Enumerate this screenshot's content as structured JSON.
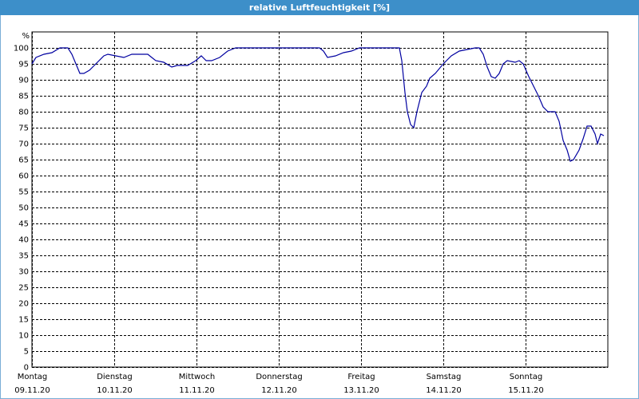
{
  "chart_data": {
    "type": "line",
    "title": "relative Luftfeuchtigkeit [%]",
    "y_label": "%",
    "color": "#0000a0",
    "grid": true,
    "xlim": [
      0,
      7
    ],
    "ylim": [
      0,
      105
    ],
    "xticks": [
      {
        "value": 0,
        "label": "09.11.20",
        "day": "Montag"
      },
      {
        "value": 1,
        "label": "10.11.20",
        "day": "Dienstag"
      },
      {
        "value": 2,
        "label": "11.11.20",
        "day": "Mittwoch"
      },
      {
        "value": 3,
        "label": "12.11.20",
        "day": "Donnerstag"
      },
      {
        "value": 4,
        "label": "13.11.20",
        "day": "Freitag"
      },
      {
        "value": 5,
        "label": "14.11.20",
        "day": "Samstag"
      },
      {
        "value": 6,
        "label": "15.11.20",
        "day": "Sonntag"
      }
    ],
    "yticks": [
      0,
      5,
      10,
      15,
      20,
      25,
      30,
      35,
      40,
      45,
      50,
      55,
      60,
      65,
      70,
      75,
      80,
      85,
      90,
      95,
      100
    ],
    "x": [
      0,
      0.049,
      0.146,
      0.243,
      0.34,
      0.437,
      0.485,
      0.534,
      0.583,
      0.631,
      0.699,
      0.777,
      0.874,
      0.922,
      1.019,
      1.117,
      1.214,
      1.311,
      1.408,
      1.456,
      1.505,
      1.602,
      1.699,
      1.767,
      1.893,
      1.99,
      2.058,
      2.117,
      2.184,
      2.282,
      2.379,
      2.476,
      2.961,
      3.495,
      3.544,
      3.592,
      3.689,
      3.786,
      3.883,
      3.981,
      4.466,
      4.495,
      4.534,
      4.563,
      4.602,
      4.641,
      4.68,
      4.738,
      4.796,
      4.835,
      4.903,
      5,
      5.097,
      5.194,
      5.291,
      5.388,
      5.437,
      5.485,
      5.534,
      5.583,
      5.631,
      5.68,
      5.728,
      5.777,
      5.874,
      5.922,
      5.971,
      6.039,
      6.097,
      6.155,
      6.214,
      6.272,
      6.359,
      6.408,
      6.456,
      6.505,
      6.544,
      6.583,
      6.65,
      6.699,
      6.748,
      6.796,
      6.845,
      6.874,
      6.913,
      6.951
    ],
    "values": [
      95,
      97,
      98,
      98.5,
      100,
      100,
      98,
      95,
      92,
      92,
      93,
      95,
      97.5,
      98,
      97.5,
      97,
      98,
      98,
      98,
      97,
      96,
      95.5,
      94,
      94.5,
      94.5,
      96,
      97.5,
      96,
      96,
      97,
      99,
      100,
      100,
      100,
      99,
      97,
      97.5,
      98.5,
      99,
      100,
      100,
      96,
      86,
      80,
      76,
      75,
      80,
      86,
      88,
      90.5,
      92,
      95,
      97.5,
      99,
      99.5,
      100,
      100,
      98,
      94,
      91,
      90.5,
      92,
      95,
      96,
      95.5,
      96,
      95,
      91,
      88,
      85,
      81.5,
      80,
      80,
      77,
      71,
      68,
      64.5,
      65,
      68,
      71.5,
      75.5,
      75.5,
      73,
      70,
      73,
      72.5
    ]
  }
}
